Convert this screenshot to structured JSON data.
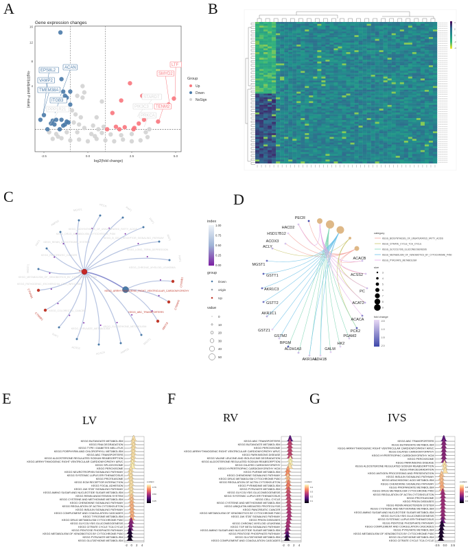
{
  "panels": {
    "A": "A",
    "B": "B",
    "C": "C",
    "D": "D",
    "E": "E",
    "F": "F",
    "G": "G"
  },
  "chart_data": [
    {
      "id": "volcano",
      "type": "scatter",
      "title": "Gene expression changes",
      "xlabel": "log2(fold change)",
      "ylabel": "-log10(adjusted P-value)",
      "xlim": [
        -3.2,
        5.3
      ],
      "x_ticks": [
        {
          "v": -2.5,
          "label": "-2.5"
        },
        {
          "v": 0,
          "label": "0.0"
        },
        {
          "v": 2.5,
          "label": "2.5"
        },
        {
          "v": 5,
          "label": "5.0"
        }
      ],
      "y_ticks": [
        {
          "v": 4,
          "label": "4"
        },
        {
          "v": 8,
          "label": "8"
        },
        {
          "v": 12,
          "label": "12"
        },
        {
          "v": 16,
          "label": "16"
        }
      ],
      "fc_thresholds": [
        -1,
        1
      ],
      "p_threshold": 0.3,
      "legend": {
        "title": "Group",
        "items": [
          {
            "label": "Up",
            "color": "#f8767d"
          },
          {
            "label": "Down",
            "color": "#4a7aa8"
          },
          {
            "label": "NoSign",
            "color": "#d3d3d3"
          }
        ]
      },
      "points": {
        "Down": [
          [
            -1.56,
            14.5
          ],
          [
            -1.5,
            5.0
          ],
          [
            -2.3,
            3.5
          ],
          [
            -1.4,
            3.3
          ],
          [
            -1.0,
            3.3
          ],
          [
            -1.3,
            2.8
          ],
          [
            -1.2,
            2.6
          ],
          [
            -1.0,
            1.9
          ],
          [
            -1.5,
            1.5
          ],
          [
            -2.7,
            0.75
          ],
          [
            -2.5,
            1.05
          ],
          [
            -2.0,
            0.7
          ],
          [
            -1.8,
            0.75
          ],
          [
            -1.5,
            0.75
          ],
          [
            -1.2,
            0.65
          ],
          [
            -2.3,
            0.3
          ],
          [
            -1.6,
            0.3
          ],
          [
            -1.9,
            0.5
          ],
          [
            -1.3,
            0.5
          ],
          [
            -1.1,
            0.6
          ],
          [
            -2.1,
            0.55
          ],
          [
            -1.4,
            0.45
          ]
        ],
        "Up": [
          [
            2.4,
            4.4
          ],
          [
            3.1,
            2.8
          ],
          [
            1.9,
            2.3
          ],
          [
            4.9,
            2.5
          ],
          [
            4.6,
            1.9
          ],
          [
            1.4,
            1.2
          ],
          [
            4.0,
            0.65
          ],
          [
            1.6,
            0.4
          ],
          [
            2.1,
            0.38
          ],
          [
            2.6,
            0.3
          ],
          [
            2.9,
            0.55
          ],
          [
            3.2,
            0.75
          ],
          [
            1.1,
            0.3
          ],
          [
            1.8,
            0.3
          ],
          [
            2.65,
            0.35
          ]
        ],
        "NoSign": [
          [
            -0.3,
            4.0
          ],
          [
            -0.2,
            3.2
          ],
          [
            -0.6,
            2.8
          ],
          [
            -0.3,
            2.6
          ],
          [
            0.8,
            2.2
          ],
          [
            -0.9,
            1.4
          ],
          [
            -0.7,
            1.1
          ],
          [
            -0.4,
            0.9
          ],
          [
            0.5,
            0.9
          ],
          [
            -0.8,
            0.6
          ],
          [
            -0.5,
            0.5
          ],
          [
            0.3,
            0.45
          ],
          [
            0.9,
            0.4
          ],
          [
            0.6,
            0.3
          ],
          [
            -0.2,
            0.35
          ],
          [
            -2.2,
            0.2
          ],
          [
            -1.8,
            0.15
          ],
          [
            -1.2,
            0.2
          ],
          [
            -0.6,
            0.2
          ],
          [
            0.2,
            0.15
          ],
          [
            0.8,
            0.18
          ],
          [
            1.3,
            0.14
          ],
          [
            1.9,
            0.12
          ],
          [
            2.5,
            0.15
          ],
          [
            3.3,
            0.2
          ],
          [
            3.5,
            0.3
          ],
          [
            -2.0,
            0.05
          ],
          [
            -1.5,
            0.06
          ],
          [
            -1.0,
            0.03
          ],
          [
            -0.5,
            0.04
          ],
          [
            0.0,
            0.02
          ],
          [
            0.5,
            0.05
          ],
          [
            1.0,
            0.03
          ],
          [
            1.5,
            0.02
          ],
          [
            2.0,
            0.04
          ],
          [
            2.5,
            0.02
          ],
          [
            3.0,
            0.03
          ],
          [
            3.4,
            0.08
          ],
          [
            -1.7,
            0.09
          ],
          [
            0.4,
            0.1
          ]
        ]
      },
      "labels": [
        {
          "text": "EPS8L2",
          "group": "Down"
        },
        {
          "text": "ACAN",
          "group": "Down"
        },
        {
          "text": "VAMP2",
          "group": "Down"
        },
        {
          "text": "TMEM38A",
          "group": "Down"
        },
        {
          "text": "ITGB3",
          "group": "Down"
        },
        {
          "text": "PPP1R21",
          "group": "NoSign"
        },
        {
          "text": "LTF",
          "group": "Up"
        },
        {
          "text": "SMYD2",
          "group": "Up"
        },
        {
          "text": "STARD7",
          "group": "NoSign"
        },
        {
          "text": "PIK3C3",
          "group": "NoSign"
        },
        {
          "text": "TENM2",
          "group": "Up"
        },
        {
          "text": "PRKCA",
          "group": "NoSign"
        }
      ]
    },
    {
      "id": "heatmap",
      "type": "heatmap",
      "n_rows": 75,
      "n_cols": 44,
      "colorbar_ticks": [
        "4",
        "2",
        "0",
        "-2",
        "-4"
      ],
      "colors": [
        "#440154",
        "#31688e",
        "#21918c",
        "#35b779",
        "#fde725"
      ]
    },
    {
      "id": "network",
      "type": "network",
      "center_label": "KAF",
      "hub_label": "KEGG_ARRHYTHMOGENIC_RIGHT_VENTRICULAR_CARDIOMYOPATHY",
      "pathways": [
        "KEGG_BIOSYNTHESIS_OF_UNSATURATED_FATTY_ACIDS",
        "KEGG_DRUG_METABOLISM_CYTOCHROME_P450",
        "KEGG_B_CELL_RECEPTOR_SIGNALING_PATHWAY",
        "KEGG_RENIN_ANGIOTENSIN_SYSTEM",
        "KEGG_LONG_TERM_DEPRESSION",
        "KEGG_PANCREATIC_CANCER",
        "KEGG_CHRONIC_MYELOID_LEUKEMIA",
        "KEGG_METABOLISM_OF_XENOBIOTICS_BY_CYTOCHROME_P450",
        "KEGG_PATHOGENIC_ESCHERICHIA_COLI_INFECTION",
        "KEGG_COLORECTAL_CANCER",
        "KEGG_PYRUVATE_METABOLISM",
        "KEGG_GLUTATHIONE_METABOLISM"
      ],
      "up_pathways": [
        "KEGG_ABC_TRANSPORTERS"
      ],
      "genes": [
        {
          "label": "MGST1",
          "group": "Down"
        },
        {
          "label": "PECR",
          "group": "Down"
        },
        {
          "label": "RAF1",
          "group": "Down"
        },
        {
          "label": "RAF1",
          "group": "Down"
        },
        {
          "label": "RAF1",
          "group": "Down"
        },
        {
          "label": "RAF1",
          "group": "Down"
        },
        {
          "label": "AMPD3",
          "group": "Down"
        },
        {
          "label": "RAF1",
          "group": "Down"
        },
        {
          "label": "MGST1",
          "group": "Down"
        },
        {
          "label": "CTNNB1",
          "group": "Up"
        },
        {
          "label": "CTNNB1",
          "group": "Up"
        },
        {
          "label": "RAF1",
          "group": "Down"
        },
        {
          "label": "ACSS2",
          "group": "Down"
        },
        {
          "label": "ACACA",
          "group": "Down"
        },
        {
          "label": "AMPD3",
          "group": "Down"
        },
        {
          "label": "MGST1",
          "group": "Down"
        },
        {
          "label": "ABCC8",
          "group": "Up"
        },
        {
          "label": "CTNNA3",
          "group": "Up"
        },
        {
          "label": "CTNNB1",
          "group": "Up"
        }
      ],
      "legend": {
        "index_title": "index",
        "index_ticks": [
          "1.00",
          "0.75",
          "0.50",
          "0.25",
          "0.00"
        ],
        "group_title": "group",
        "groups": [
          {
            "label": "Down",
            "color": "#4a7aa8"
          },
          {
            "label": "origin",
            "color": "#9aa3ab"
          },
          {
            "label": "Up",
            "color": "#c0392b"
          }
        ],
        "value_title": "value",
        "values": [
          "0",
          "10",
          "20",
          "30",
          "40",
          "50"
        ]
      }
    },
    {
      "id": "cnetplot",
      "type": "network",
      "genes": [
        "PECR",
        "HACD2",
        "HSD17B12",
        "ACOX3",
        "ACLY",
        "MGST1",
        "GSTT1",
        "AKR1C3",
        "GSTT2",
        "AKR1C1",
        "GSTZ1",
        "GSTM2",
        "BPGM",
        "ALDH1A3",
        "AKR1A1",
        "ADH1B",
        "GALM",
        "HK2",
        "PGAM2",
        "PCK2",
        "ACACA",
        "ACAT2",
        "PC",
        "ACSS2",
        "ACACB"
      ],
      "fold_change": [
        -2.0,
        -0.6,
        -0.5,
        -0.6,
        -0.8,
        -1.6,
        -1.7,
        -1.6,
        -1.5,
        -0.9,
        -0.5,
        -0.6,
        -1.8,
        -0.7,
        -0.6,
        -0.5,
        -0.5,
        -0.5,
        -0.6,
        -1.8,
        -1.3,
        -0.8,
        -0.7,
        -0.6,
        -0.7
      ],
      "categories": [
        {
          "label": "KEGG_BIOSYNTHESIS_OF_UNSATURATED_FATTY_ACIDS",
          "color": "#f4a6a0",
          "size": 5
        },
        {
          "label": "KEGG_CITRATE_CYCLE_TCA_CYCLE",
          "color": "#c8c46a",
          "size": 3
        },
        {
          "label": "KEGG_GLYCOLYSIS_GLUCONEOGENESIS",
          "color": "#7fd6b5",
          "size": 9
        },
        {
          "label": "KEGG_METABOLISM_OF_XENOBIOTICS_BY_CYTOCHROME_P450",
          "color": "#6cc1e8",
          "size": 8
        },
        {
          "label": "KEGG_PYRUVATE_METABOLISM",
          "color": "#e2a6e8",
          "size": 6
        }
      ],
      "legend": {
        "category_title": "category",
        "size_title": "size",
        "sizes": [
          "3",
          "4",
          "5",
          "6",
          "7",
          "8",
          "9"
        ],
        "fc_title": "fold change",
        "fc_ticks": [
          "-0.5",
          "-1.0",
          "-1.5",
          "-2.0"
        ]
      }
    },
    {
      "id": "ridge_LV",
      "type": "ridge",
      "title": "LV",
      "x_ticks": [
        "-2",
        "0",
        "2",
        "4"
      ],
      "legend_title": "p.adjust",
      "legend_ticks": [
        "0.75",
        "0.50",
        "0.25"
      ],
      "pmax": 0.85,
      "pathways": [
        "KEGG BUTANOATE METABOLISM",
        "KEGG RNA DEGRADATION",
        "KEGG TYPE I DIABETES MELLITUS",
        "KEGG PORPHYRIN AND CHLOROPHYLL METABOLISM",
        "KEGG ABC TRANSPORTERS",
        "KEGG ALDOSTERONE REGULATED SODIUM REABSORPTION",
        "KEGG ARRHYTHMOGENIC RIGHT VENTRICULAR CARDIOMYOPATHY ARVC",
        "KEGG SPLICEOSOME",
        "KEGG PEROXISOME",
        "KEGG NEUROTROPHIN SIGNALING PATHWAY",
        "KEGG SYSTEMIC LUPUS ERYTHEMATOSUS",
        "KEGG PROTEASOME",
        "KEGG ECM RECEPTOR INTERACTION",
        "KEGG FOCAL ADHESION",
        "KEGG JAK STAT SIGNALING PATHWAY",
        "KEGG AMINO SUGAR AND NUCLEOTIDE SUGAR METABOLISM",
        "KEGG RENIN ANGIOTENSIN SYSTEM",
        "KEGG CYSTEINE AND METHIONINE METABOLISM",
        "KEGG CHEMOKINE SIGNALING PATHWAY",
        "KEGG REGULATION OF ACTIN CYTOSKELETON",
        "KEGG INSULIN SIGNALING PATHWAY",
        "KEGG COMPLEMENT AND COAGULATION CASCADES",
        "KEGG TYROSINE METABOLISM",
        "KEGG DRUG METABOLISM CYTOCHROME P450",
        "KEGG GLYCOLYSIS GLUCONEOGENESIS",
        "KEGG CITRATE CYCLE TCA CYCLE",
        "KEGG PENTOSE PHOSPHATE PATHWAY",
        "KEGG METABOLISM OF XENOBIOTICS BY CYTOCHROME P450",
        "KEGG PYRUVATE METABOLISM",
        "KEGG GLUTATHIONE METABOLISM"
      ],
      "p_adjust": [
        0.8,
        0.8,
        0.8,
        0.8,
        0.8,
        0.8,
        0.8,
        0.82,
        0.82,
        0.8,
        0.8,
        0.8,
        0.8,
        0.8,
        0.8,
        0.8,
        0.8,
        0.75,
        0.75,
        0.72,
        0.72,
        0.72,
        0.72,
        0.7,
        0.35,
        0.32,
        0.3,
        0.1,
        0.08,
        0.05
      ],
      "shift": [
        0.5,
        0.3,
        0.4,
        0.3,
        0.3,
        0.2,
        0.1,
        0,
        0,
        -0.8,
        -0.9,
        -0.8,
        -0.7,
        -0.6,
        -0.7,
        -0.6,
        -0.6,
        -0.5,
        -0.4,
        -0.4,
        -0.3,
        -0.3,
        -0.2,
        -0.3,
        -0.6,
        -0.8,
        -0.9,
        -1.2,
        -1.1,
        -1.2
      ]
    },
    {
      "id": "ridge_RV",
      "type": "ridge",
      "title": "RV",
      "x_ticks": [
        "-2",
        "0",
        "2",
        "4"
      ],
      "legend_title": "p.adjust",
      "legend_ticks": [
        "0.4",
        "0.3",
        "0.2",
        "0.1"
      ],
      "pmax": 0.45,
      "pathways": [
        "KEGG ABC TRANSPORTERS",
        "KEGG BUTANOATE METABOLISM",
        "KEGG PEROXISOME",
        "KEGG ARRHYTHMOGENIC RIGHT VENTRICULAR CARDIOMYOPATHY ARVC",
        "KEGG PARKINSONS DISEASE",
        "KEGG VALINE LEUCINE AND ISOLEUCINE DEGRADATION",
        "KEGG ALDOSTERONE REGULATED SODIUM REABSORPTION",
        "KEGG DILATED CARDIOMYOPATHY",
        "KEGG HYPERTROPHIC CARDIOMYOPATHY HCM",
        "KEGG PURINE METABOLISM",
        "KEGG CHEMOKINE SIGNALING PATHWAY",
        "KEGG DRUG METABOLISM CYTOCHROME P450",
        "KEGG REGULATION OF ACTIN CYTOSKELETON",
        "KEGG PYRIMIDINE METABOLISM",
        "KEGG PYRUVATE METABOLISM",
        "KEGG GLYCOLYSIS GLUCONEOGENESIS",
        "KEGG SYSTEMIC LUPUS ERYTHEMATOSUS",
        "KEGG CELL CYCLE",
        "KEGG CYSTEINE AND METHIONINE METABOLISM",
        "KEGG UBIQUITIN MEDIATED PROTEOLYSIS",
        "KEGG PANCREATIC CANCER",
        "KEGG METABOLISM OF XENOBIOTICS BY CYTOCHROME P450",
        "KEGG JAK STAT SIGNALING PATHWAY",
        "KEGG PRION DISEASES",
        "KEGG CHRONIC MYELOID LEUKEMIA",
        "KEGG TGF BETA SIGNALING PATHWAY",
        "KEGG AMINO SUGAR AND NUCLEOTIDE SUGAR METABOLISM",
        "KEGG PENTOSE PHOSPHATE PATHWAY",
        "KEGG GLUTATHIONE METABOLISM",
        "KEGG COMPLEMENT AND COAGULATION CASCADES"
      ],
      "p_adjust": [
        0.12,
        0.24,
        0.25,
        0.25,
        0.25,
        0.25,
        0.44,
        0.44,
        0.42,
        0.36,
        0.34,
        0.4,
        0.38,
        0.32,
        0.33,
        0.28,
        0.26,
        0.25,
        0.26,
        0.25,
        0.24,
        0.23,
        0.22,
        0.22,
        0.22,
        0.22,
        0.2,
        0.18,
        0.1,
        0.03
      ],
      "shift": [
        0.2,
        0.1,
        0.1,
        0.1,
        0.1,
        0.1,
        0.3,
        0.3,
        0.1,
        -0.8,
        -0.9,
        -0.8,
        -0.7,
        -0.6,
        -0.7,
        -0.6,
        -0.6,
        -0.5,
        -0.4,
        -0.4,
        -0.3,
        -0.3,
        -0.2,
        -0.3,
        -0.6,
        -0.8,
        -0.9,
        -1.2,
        -1.1,
        -1.2
      ]
    },
    {
      "id": "ridge_IVS",
      "type": "ridge",
      "title": "IVS",
      "x_ticks": [
        "-2.5",
        "0.0",
        "2.5"
      ],
      "legend_title": "p.adjust",
      "legend_ticks": [
        "0.8",
        "0.6",
        "0.4",
        "0.2"
      ],
      "pmax": 0.9,
      "pathways": [
        "KEGG ABC TRANSPORTERS",
        "KEGG BUTANOATE METABOLISM",
        "KEGG ARRHYTHMOGENIC RIGHT VENTRICULAR CARDIOMYOPATHY ARVC",
        "KEGG DILATED CARDIOMYOPATHY",
        "KEGG HYPERTROPHIC CARDIOMYOPATHY HCM",
        "KEGG PEROXISOME",
        "KEGG PARKINSONS DISEASE",
        "KEGG ALDOSTERONE REGULATED SODIUM REABSORPTION",
        "KEGG RNA DEGRADATION",
        "KEGG ANTIGEN PROCESSING AND PRESENTATION",
        "KEGG INSULIN SIGNALING PATHWAY",
        "KEGG ARACHIDONIC ACID METABOLISM",
        "KEGG CHEMOKINE SIGNALING PATHWAY",
        "KEGG PROPANOATE METABOLISM",
        "KEGG DRUG METABOLISM CYTOCHROME P450",
        "KEGG REGULATION OF ACTIN CYTOSKELETON",
        "KEGG PROTEASOME",
        "KEGG PRION DISEASES",
        "KEGG RENIN ANGIOTENSIN SYSTEM",
        "KEGG CYSTEINE AND METHIONINE METABOLISM",
        "KEGG AMINO SUGAR AND NUCLEOTIDE SUGAR METABOLISM",
        "KEGG GLYCOLYSIS GLUCONEOGENESIS",
        "KEGG SYSTEMIC LUPUS ERYTHEMATOSUS",
        "KEGG PENTOSE PHOSPHATE PATHWAY",
        "KEGG COMPLEMENT AND COAGULATION CASCADES",
        "KEGG PYRUVATE METABOLISM",
        "KEGG METABOLISM OF XENOBIOTICS BY CYTOCHROME P450",
        "KEGG GLUTATHIONE METABOLISM",
        "KEGG CITRATE CYCLE TCA CYCLE"
      ],
      "p_adjust": [
        0.25,
        0.35,
        0.35,
        0.35,
        0.35,
        0.35,
        0.35,
        0.85,
        0.85,
        0.85,
        0.8,
        0.78,
        0.78,
        0.75,
        0.75,
        0.42,
        0.4,
        0.4,
        0.4,
        0.4,
        0.4,
        0.38,
        0.38,
        0.3,
        0.1,
        0.1,
        0.08,
        0.08,
        0.06
      ],
      "shift": [
        0.2,
        0.2,
        0.2,
        0.2,
        0.2,
        0.2,
        0.2,
        0.5,
        0.6,
        0.8,
        -0.8,
        -0.9,
        -0.8,
        -0.7,
        -0.6,
        -0.3,
        -0.2,
        -0.2,
        -0.2,
        -0.2,
        -0.2,
        -0.2,
        -0.2,
        -0.3,
        -0.6,
        -0.8,
        -0.9,
        -1.0,
        -1.1
      ]
    }
  ]
}
